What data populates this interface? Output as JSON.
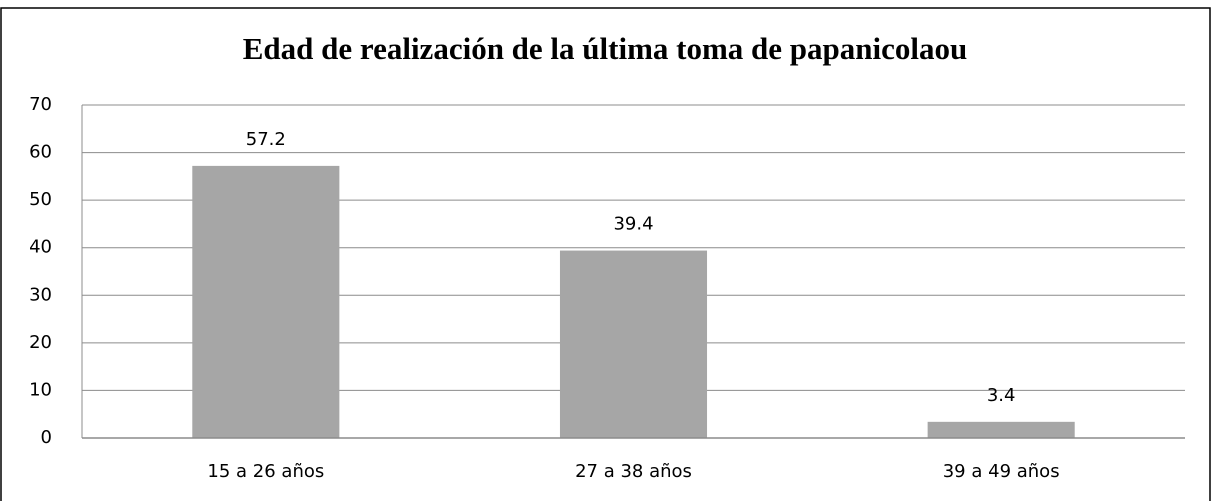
{
  "chart_data": {
    "type": "bar",
    "title": "Edad de realización de la última toma de papanicolaou",
    "categories": [
      "15 a 26 años",
      "27 a 38 años",
      "39 a 49 años"
    ],
    "values": [
      57.2,
      39.4,
      3.4
    ],
    "color": "#a6a6a6",
    "ylim": [
      0,
      70
    ],
    "yticks": [
      0,
      10,
      20,
      30,
      40,
      50,
      60,
      70
    ],
    "grid": true
  }
}
